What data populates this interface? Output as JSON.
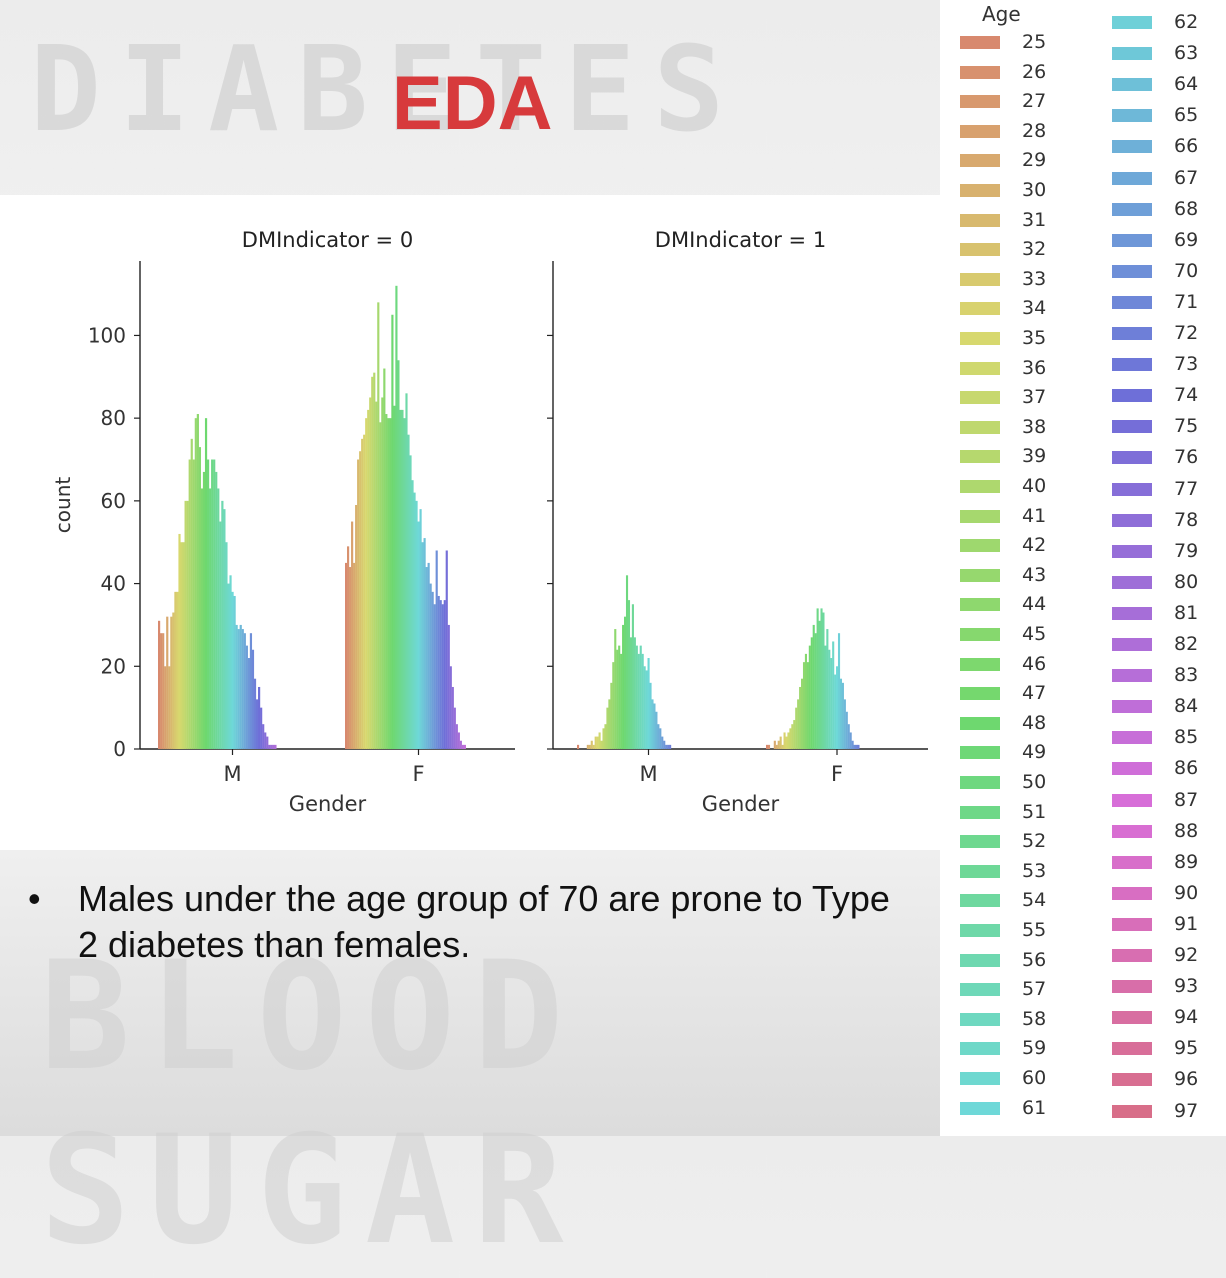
{
  "slide": {
    "title": "EDA",
    "background_words": [
      "DIABETES",
      "BLOOD SUGAR"
    ],
    "bullet_symbol": "•",
    "bullet_text": "Males under the age group of 70 are prone to Type 2 diabetes than females."
  },
  "colors": {
    "title": "#d73a3c"
  },
  "chart_data": {
    "type": "bar",
    "ylabel": "count",
    "ylim": [
      0,
      118
    ],
    "yticks": [
      0,
      20,
      40,
      60,
      80,
      100
    ],
    "legend": {
      "title": "Age",
      "placement": "right",
      "ages_from": 25,
      "ages_to": 97
    },
    "panels": [
      {
        "title": "DMIndicator = 0",
        "xlabel": "Gender",
        "categories": [
          "M",
          "F"
        ],
        "values": {
          "M": [
            31,
            28,
            28,
            20,
            32,
            20,
            32,
            33,
            38,
            38,
            52,
            50,
            50,
            60,
            60,
            70,
            75,
            70,
            80,
            81,
            73,
            63,
            67,
            80,
            70,
            63,
            70,
            70,
            67,
            63,
            55,
            60,
            58,
            50,
            40,
            42,
            38,
            37,
            30,
            29,
            30,
            29,
            28,
            25,
            22,
            28,
            24,
            17,
            12,
            15,
            10,
            6,
            4,
            3,
            1,
            1,
            1,
            1,
            0,
            0,
            0,
            0,
            0,
            0,
            0,
            0,
            0,
            0,
            0,
            0,
            0,
            0,
            0
          ],
          "F": [
            45,
            49,
            44,
            55,
            45,
            59,
            70,
            72,
            75,
            76,
            80,
            82,
            85,
            90,
            91,
            84,
            108,
            79,
            85,
            92,
            81,
            80,
            80,
            105,
            83,
            112,
            94,
            82,
            82,
            80,
            86,
            76,
            71,
            65,
            62,
            60,
            55,
            58,
            50,
            51,
            44,
            45,
            40,
            38,
            35,
            48,
            37,
            36,
            35,
            36,
            48,
            30,
            20,
            15,
            10,
            6,
            4,
            2,
            1,
            1,
            0,
            0,
            0,
            0,
            0,
            0,
            0,
            0,
            0,
            0,
            0,
            0,
            0
          ]
        }
      },
      {
        "title": "DMIndicator = 1",
        "xlabel": "Gender",
        "categories": [
          "M",
          "F"
        ],
        "values": {
          "M": [
            1,
            0,
            0,
            0,
            0,
            1,
            1,
            2,
            1,
            3,
            3,
            4,
            2,
            5,
            6,
            10,
            12,
            16,
            21,
            29,
            24,
            25,
            23,
            30,
            32,
            42,
            36,
            27,
            35,
            27,
            25,
            23,
            25,
            23,
            20,
            19,
            22,
            16,
            12,
            11,
            9,
            6,
            5,
            3,
            2,
            1,
            1,
            1,
            0,
            0,
            0,
            0,
            0,
            0,
            0,
            0,
            0,
            0,
            0,
            0,
            0,
            0,
            0,
            0,
            0,
            0,
            0,
            0,
            0,
            0,
            0,
            0,
            0
          ],
          "F": [
            1,
            1,
            0,
            0,
            2,
            1,
            2,
            3,
            1,
            4,
            3,
            4,
            5,
            6,
            7,
            10,
            12,
            15,
            17,
            21,
            23,
            21,
            25,
            27,
            30,
            28,
            34,
            31,
            34,
            33,
            25,
            29,
            24,
            22,
            26,
            18,
            20,
            28,
            17,
            16,
            12,
            9,
            6,
            4,
            2,
            1,
            1,
            1,
            0,
            0,
            0,
            0,
            0,
            0,
            0,
            0,
            0,
            0,
            0,
            0,
            0,
            0,
            0,
            0,
            0,
            0,
            0,
            0,
            0,
            0,
            0,
            0,
            0
          ]
        }
      }
    ]
  }
}
